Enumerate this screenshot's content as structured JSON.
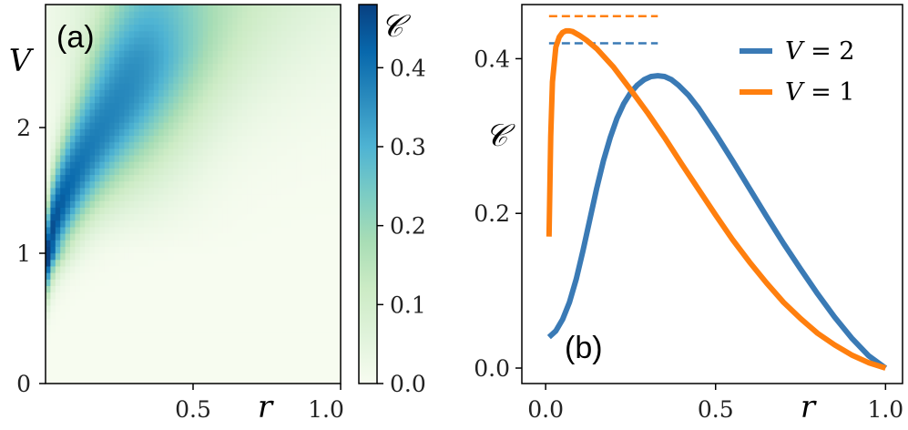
{
  "chart_data": [
    {
      "id": "a",
      "type": "heatmap",
      "panel_label": "(a)",
      "xlabel": "r",
      "ylabel": "V",
      "xlim": [
        0,
        1
      ],
      "ylim": [
        0,
        2.9
      ],
      "xticks": [
        "0.5",
        "1.0"
      ],
      "xtick_values": [
        0.5,
        1.0
      ],
      "yticks": [
        "0",
        "1",
        "2"
      ],
      "ytick_values": [
        0,
        1,
        2
      ],
      "colorbar": {
        "label": "𝒞",
        "range": [
          0,
          0.48
        ],
        "ticks": [
          "0.0",
          "0.1",
          "0.2",
          "0.3",
          "0.4"
        ],
        "tick_values": [
          0.0,
          0.1,
          0.2,
          0.3,
          0.4
        ],
        "colormap": [
          "#f7fcf0",
          "#e0f3db",
          "#ccebc5",
          "#a8ddb5",
          "#7bccc4",
          "#4eb3d3",
          "#2b8cbe",
          "#0868ac",
          "#084081"
        ]
      },
      "peak": {
        "r": 0.02,
        "V": 1.0,
        "value": 0.48
      }
    },
    {
      "id": "b",
      "type": "line",
      "panel_label": "(b)",
      "xlabel": "r",
      "ylabel": "𝒞",
      "xlim": [
        -0.07,
        1.05
      ],
      "ylim": [
        -0.02,
        0.47
      ],
      "xticks": [
        "0.0",
        "0.5",
        "1.0"
      ],
      "xtick_values": [
        0.0,
        0.5,
        1.0
      ],
      "yticks": [
        "0.0",
        "0.2",
        "0.4"
      ],
      "ytick_values": [
        0.0,
        0.2,
        0.4
      ],
      "series": [
        {
          "name": "V = 2",
          "legend_var": "V",
          "legend_rest": " = 2",
          "color": "#3a7ab5",
          "x": [
            0.01,
            0.03,
            0.05,
            0.07,
            0.09,
            0.11,
            0.13,
            0.15,
            0.17,
            0.19,
            0.21,
            0.23,
            0.25,
            0.27,
            0.29,
            0.31,
            0.33,
            0.35,
            0.37,
            0.39,
            0.42,
            0.45,
            0.5,
            0.55,
            0.6,
            0.65,
            0.7,
            0.75,
            0.8,
            0.85,
            0.9,
            0.95,
            1.0
          ],
          "y": [
            0.04,
            0.048,
            0.063,
            0.085,
            0.115,
            0.152,
            0.192,
            0.232,
            0.268,
            0.298,
            0.323,
            0.342,
            0.356,
            0.366,
            0.373,
            0.377,
            0.378,
            0.377,
            0.373,
            0.366,
            0.353,
            0.336,
            0.303,
            0.268,
            0.232,
            0.196,
            0.161,
            0.128,
            0.096,
            0.066,
            0.039,
            0.016,
            0.0
          ],
          "reference_level": 0.42,
          "reference_range": [
            0.01,
            0.33
          ]
        },
        {
          "name": "V = 1",
          "legend_var": "V",
          "legend_rest": " = 1",
          "color": "#ff7f0e",
          "x": [
            0.01,
            0.015,
            0.02,
            0.03,
            0.04,
            0.05,
            0.06,
            0.07,
            0.08,
            0.1,
            0.12,
            0.15,
            0.2,
            0.25,
            0.3,
            0.35,
            0.4,
            0.45,
            0.5,
            0.55,
            0.6,
            0.65,
            0.7,
            0.75,
            0.8,
            0.85,
            0.9,
            0.95,
            1.0
          ],
          "y": [
            0.17,
            0.3,
            0.37,
            0.415,
            0.428,
            0.434,
            0.436,
            0.436,
            0.435,
            0.43,
            0.424,
            0.413,
            0.389,
            0.36,
            0.33,
            0.298,
            0.264,
            0.231,
            0.198,
            0.166,
            0.137,
            0.11,
            0.085,
            0.064,
            0.045,
            0.03,
            0.017,
            0.007,
            0.0
          ],
          "reference_level": 0.455,
          "reference_range": [
            0.01,
            0.33
          ]
        }
      ],
      "legend_location": "top-right"
    }
  ]
}
